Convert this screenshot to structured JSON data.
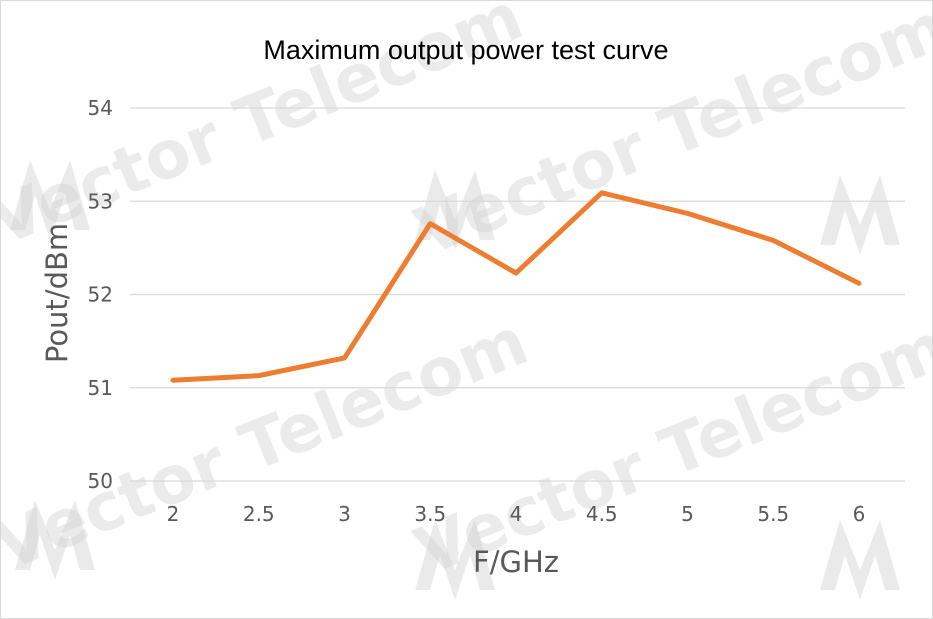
{
  "chart_data": {
    "type": "line",
    "title": "Maximum output power test curve",
    "xlabel": "F/GHz",
    "ylabel": "Pout/dBm",
    "categories": [
      "2",
      "2.5",
      "3",
      "3.5",
      "4",
      "4.5",
      "5",
      "5.5",
      "6"
    ],
    "x": [
      2,
      2.5,
      3,
      3.5,
      4,
      4.5,
      5,
      5.5,
      6
    ],
    "y": [
      51.08,
      51.13,
      51.32,
      52.76,
      52.23,
      53.09,
      52.87,
      52.58,
      52.12
    ],
    "yticks": [
      50,
      51,
      52,
      53,
      54
    ],
    "ylim": [
      50,
      54
    ],
    "grid": true,
    "legend": "none",
    "line_color": "#ED7D31"
  },
  "watermark": {
    "text": "Vector Telecom",
    "color": "#d4d4d4"
  }
}
